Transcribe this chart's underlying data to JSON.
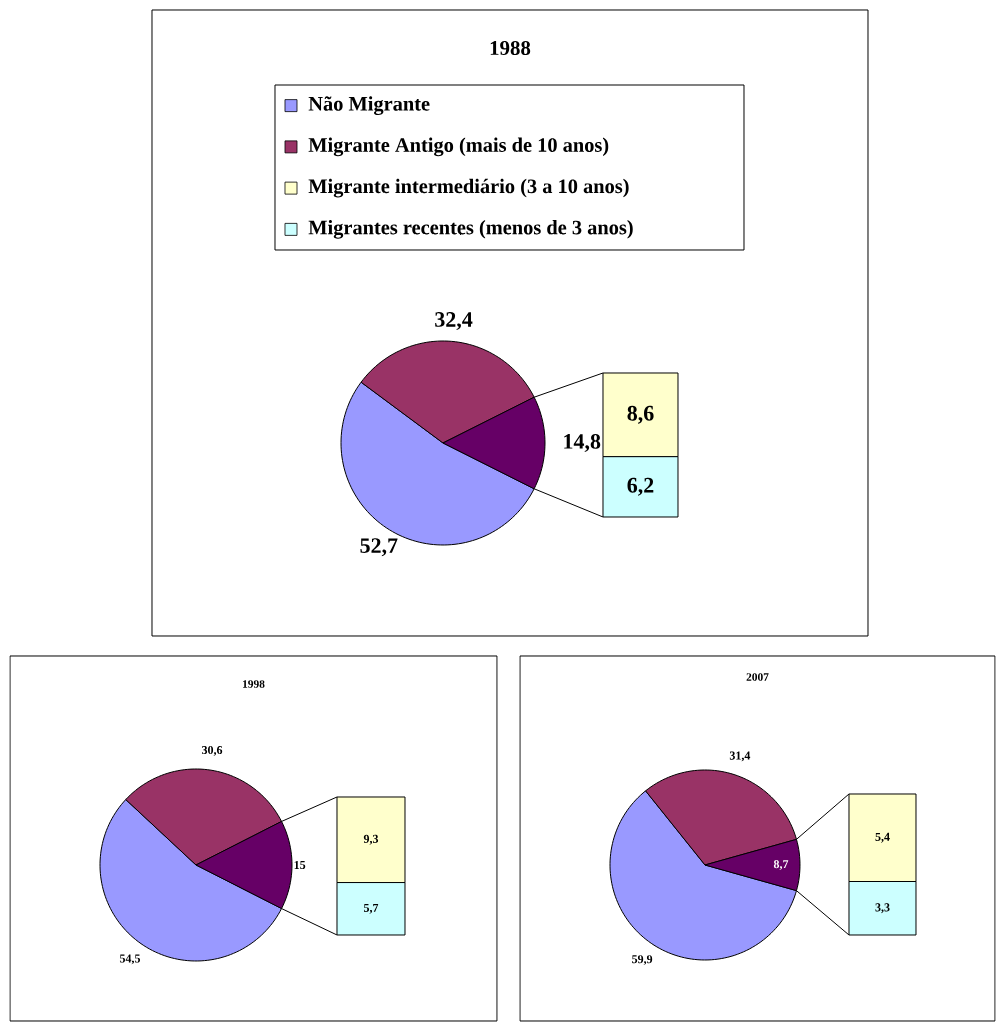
{
  "chart_data": [
    {
      "type": "pie",
      "title": "1988",
      "categories": [
        "Não Migrante",
        "Migrante Antigo (mais de 10 anos)",
        null
      ],
      "values": [
        52.7,
        32.4,
        14.8
      ],
      "colors": [
        "#9999ff",
        "#993366",
        "#660066"
      ],
      "value_labels": [
        "52,7",
        "32,4",
        "14,8"
      ],
      "legend": "top"
    },
    {
      "type": "bar",
      "stacked": true,
      "categories": [
        null
      ],
      "series": [
        {
          "name": "Migrantes recentes (menos de 3 anos)",
          "color": "#ccffff",
          "values": [
            6.2
          ],
          "value_labels": [
            "6,2"
          ]
        },
        {
          "name": "Migrante intermediário (3 a 10 anos)",
          "color": "#ffffcc",
          "values": [
            8.6
          ],
          "value_labels": [
            "8,6"
          ]
        }
      ],
      "legend": "top"
    },
    {
      "type": "pie",
      "title": "1998",
      "categories": [
        null,
        null,
        null
      ],
      "values": [
        54.5,
        30.6,
        15
      ],
      "colors": [
        "#9999ff",
        "#993366",
        "#660066"
      ],
      "value_labels": [
        "54,5",
        "30,6",
        "15"
      ]
    },
    {
      "type": "bar",
      "stacked": true,
      "categories": [
        null
      ],
      "series": [
        {
          "color": "#ccffff",
          "values": [
            5.7
          ],
          "value_labels": [
            "5,7"
          ]
        },
        {
          "color": "#ffffcc",
          "values": [
            9.3
          ],
          "value_labels": [
            "9,3"
          ]
        }
      ]
    },
    {
      "type": "pie",
      "title": "2007",
      "categories": [
        null,
        null,
        null
      ],
      "values": [
        59.9,
        31.4,
        8.7
      ],
      "colors": [
        "#9999ff",
        "#993366",
        "#660066"
      ],
      "value_labels": [
        "59,9",
        "31,4",
        "8,7"
      ]
    },
    {
      "type": "bar",
      "stacked": true,
      "categories": [
        null
      ],
      "series": [
        {
          "color": "#ccffff",
          "values": [
            3.3
          ],
          "value_labels": [
            "3,3"
          ]
        },
        {
          "color": "#ffffcc",
          "values": [
            5.4
          ],
          "value_labels": [
            "5,4"
          ]
        }
      ]
    }
  ]
}
